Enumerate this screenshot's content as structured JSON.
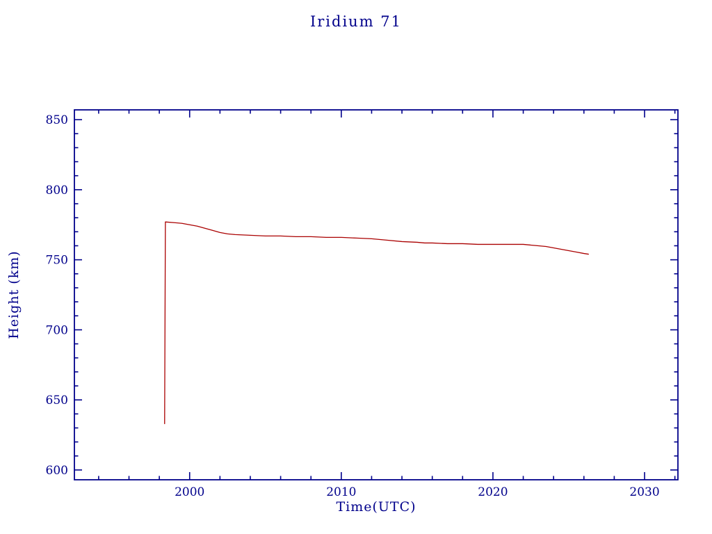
{
  "chart_data": {
    "type": "line",
    "title": "Iridium 71",
    "xlabel": "Time(UTC)",
    "ylabel": "Height (km)",
    "xlim": [
      1992.4,
      2032.2
    ],
    "ylim": [
      593,
      857
    ],
    "x_ticks": [
      2000,
      2010,
      2020,
      2030
    ],
    "x_minor_step": 2,
    "y_ticks": [
      600,
      650,
      700,
      750,
      800,
      850
    ],
    "y_minor_step": 10,
    "grid": false,
    "legend": "none",
    "axis_color": "#00008b",
    "series": [
      {
        "name": "height",
        "color": "#aa0000",
        "points": [
          [
            1998.35,
            633
          ],
          [
            1998.4,
            777
          ],
          [
            1999.0,
            776.5
          ],
          [
            1999.5,
            776
          ],
          [
            2000.0,
            775
          ],
          [
            2000.5,
            774
          ],
          [
            2001.0,
            772.5
          ],
          [
            2001.5,
            771
          ],
          [
            2002.0,
            769.5
          ],
          [
            2002.5,
            768.5
          ],
          [
            2003.0,
            768
          ],
          [
            2004.0,
            767.5
          ],
          [
            2005.0,
            767
          ],
          [
            2006.0,
            767
          ],
          [
            2007.0,
            766.5
          ],
          [
            2008.0,
            766.5
          ],
          [
            2009.0,
            766
          ],
          [
            2010.0,
            766
          ],
          [
            2011.0,
            765.5
          ],
          [
            2012.0,
            765
          ],
          [
            2013.0,
            764
          ],
          [
            2014.0,
            763
          ],
          [
            2015.0,
            762.5
          ],
          [
            2015.5,
            762
          ],
          [
            2016.0,
            762
          ],
          [
            2017.0,
            761.5
          ],
          [
            2018.0,
            761.5
          ],
          [
            2019.0,
            761
          ],
          [
            2020.0,
            761
          ],
          [
            2021.0,
            761
          ],
          [
            2022.0,
            761
          ],
          [
            2022.5,
            760.5
          ],
          [
            2023.0,
            760
          ],
          [
            2023.5,
            759.5
          ],
          [
            2024.0,
            758.5
          ],
          [
            2024.5,
            757.5
          ],
          [
            2025.0,
            756.5
          ],
          [
            2025.5,
            755.5
          ],
          [
            2026.0,
            754.5
          ],
          [
            2026.3,
            754
          ]
        ]
      }
    ]
  }
}
